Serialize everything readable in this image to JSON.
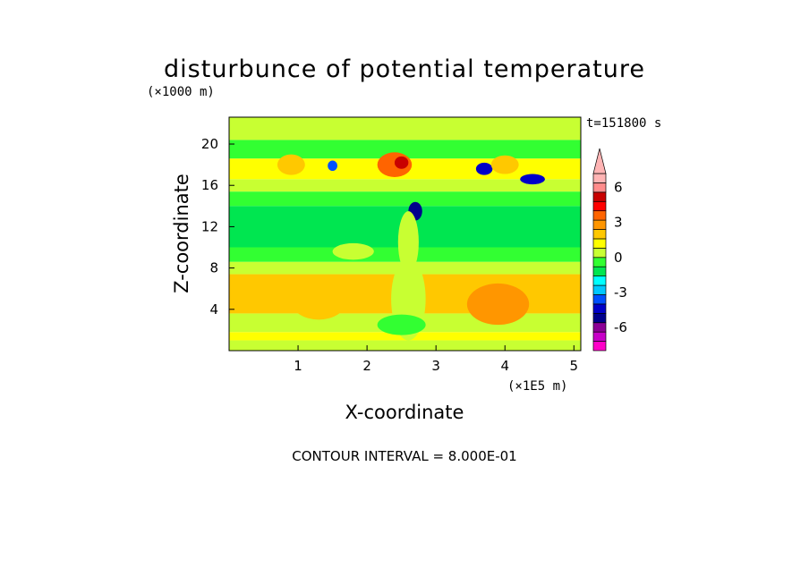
{
  "chart_data": {
    "type": "heatmap",
    "title": "disturbunce of potential temperature",
    "xlabel": "X-coordinate",
    "ylabel": "Z-coordinate",
    "x_unit_label": "(×1E5 m)",
    "y_unit_label": "(×1000 m)",
    "xlim": [
      0,
      5.1
    ],
    "ylim": [
      0,
      22.6
    ],
    "x_ticks": [
      1,
      2,
      3,
      4,
      5
    ],
    "y_ticks": [
      4,
      8,
      12,
      16,
      20
    ],
    "x_tick_labels": [
      "1",
      "2",
      "3",
      "4",
      "5"
    ],
    "y_tick_labels": [
      "4",
      "8",
      "12",
      "16",
      "20"
    ],
    "time_label": "t=151800 s",
    "footer": "CONTOUR INTERVAL = 8.000E-01",
    "colorbar": {
      "levels": [
        -8,
        -7.2,
        -6.4,
        -5.6,
        -4.8,
        -4.0,
        -3.2,
        -2.4,
        -1.6,
        -0.8,
        0,
        0.8,
        1.6,
        2.4,
        3.2,
        4.0,
        4.8,
        5.6,
        6.4
      ],
      "colors": [
        "#ff00c8",
        "#c800c8",
        "#8c0096",
        "#00008c",
        "#0000c8",
        "#0050ff",
        "#00c8ff",
        "#00ffff",
        "#00e650",
        "#32ff32",
        "#c8ff32",
        "#ffff00",
        "#ffc800",
        "#ff9600",
        "#ff6400",
        "#ff0000",
        "#c80000",
        "#ff8c8c",
        "#ffb4b4"
      ],
      "ticks": [
        -6,
        -3,
        0,
        3,
        6
      ],
      "tick_labels": [
        "-6",
        "-3",
        "0",
        "3",
        "6"
      ]
    },
    "bands": [
      {
        "z0": 0.0,
        "z1": 1.0,
        "value": 0.6
      },
      {
        "z0": 1.0,
        "z1": 1.8,
        "value": 1.4
      },
      {
        "z0": 1.8,
        "z1": 3.6,
        "value": 0.5
      },
      {
        "z0": 3.6,
        "z1": 7.4,
        "value": 1.7
      },
      {
        "z0": 7.4,
        "z1": 8.6,
        "value": 0.4
      },
      {
        "z0": 8.6,
        "z1": 10.0,
        "value": -0.4
      },
      {
        "z0": 10.0,
        "z1": 14.0,
        "value": -1.2
      },
      {
        "z0": 14.0,
        "z1": 15.4,
        "value": -0.5
      },
      {
        "z0": 15.4,
        "z1": 16.6,
        "value": 0.5
      },
      {
        "z0": 16.6,
        "z1": 18.6,
        "value": 1.2
      },
      {
        "z0": 18.6,
        "z1": 20.4,
        "value": -0.4
      },
      {
        "z0": 20.4,
        "z1": 22.6,
        "value": 0.5
      }
    ],
    "features": [
      {
        "x": 2.4,
        "z": 18.0,
        "rx": 0.25,
        "rz": 1.2,
        "value": 3.5
      },
      {
        "x": 2.5,
        "z": 18.2,
        "rx": 0.1,
        "rz": 0.6,
        "value": 5.0
      },
      {
        "x": 1.5,
        "z": 17.9,
        "rx": 0.07,
        "rz": 0.5,
        "value": -4.0
      },
      {
        "x": 3.7,
        "z": 17.6,
        "rx": 0.12,
        "rz": 0.6,
        "value": -4.2
      },
      {
        "x": 4.4,
        "z": 16.6,
        "rx": 0.18,
        "rz": 0.5,
        "value": -4.4
      },
      {
        "x": 2.7,
        "z": 13.5,
        "rx": 0.1,
        "rz": 0.9,
        "value": -5.0
      },
      {
        "x": 4.0,
        "z": 18.0,
        "rx": 0.2,
        "rz": 0.9,
        "value": 2.2
      },
      {
        "x": 0.9,
        "z": 18.0,
        "rx": 0.2,
        "rz": 1.0,
        "value": 2.0
      },
      {
        "x": 1.3,
        "z": 4.8,
        "rx": 0.4,
        "rz": 1.8,
        "value": 2.3
      },
      {
        "x": 3.9,
        "z": 4.5,
        "rx": 0.45,
        "rz": 2.0,
        "value": 2.4
      },
      {
        "x": 2.6,
        "z": 5.0,
        "rx": 0.25,
        "rz": 4.0,
        "value": 0.2
      },
      {
        "x": 2.6,
        "z": 10.5,
        "rx": 0.15,
        "rz": 3.0,
        "value": 0.2
      },
      {
        "x": 1.8,
        "z": 9.6,
        "rx": 0.3,
        "rz": 0.8,
        "value": 0.4
      },
      {
        "x": 2.5,
        "z": 2.5,
        "rx": 0.35,
        "rz": 1.0,
        "value": -0.3
      }
    ]
  }
}
